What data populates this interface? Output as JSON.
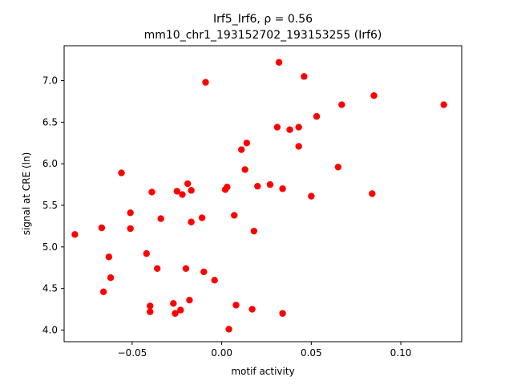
{
  "chart_data": {
    "type": "scatter",
    "title_line1": "Irf5_Irf6, ρ = 0.56",
    "title_line2": "mm10_chr1_193152702_193153255 (Irf6)",
    "xlabel": "motif activity",
    "ylabel": "signal at CRE (ln)",
    "xlim": [
      -0.088,
      0.134
    ],
    "ylim": [
      3.86,
      7.42
    ],
    "xticks": [
      -0.05,
      0.0,
      0.05,
      0.1
    ],
    "xtick_labels": [
      "−0.05",
      "0.00",
      "0.05",
      "0.10"
    ],
    "yticks": [
      4.0,
      4.5,
      5.0,
      5.5,
      6.0,
      6.5,
      7.0
    ],
    "ytick_labels": [
      "4.0",
      "4.5",
      "5.0",
      "5.5",
      "6.0",
      "6.5",
      "7.0"
    ],
    "grid": false,
    "marker_color": "#ff0000",
    "points": [
      {
        "x": -0.082,
        "y": 5.15
      },
      {
        "x": -0.067,
        "y": 5.23
      },
      {
        "x": -0.066,
        "y": 4.46
      },
      {
        "x": -0.063,
        "y": 4.88
      },
      {
        "x": -0.062,
        "y": 4.63
      },
      {
        "x": -0.056,
        "y": 5.89
      },
      {
        "x": -0.051,
        "y": 5.41
      },
      {
        "x": -0.051,
        "y": 5.22
      },
      {
        "x": -0.042,
        "y": 4.92
      },
      {
        "x": -0.04,
        "y": 4.29
      },
      {
        "x": -0.04,
        "y": 4.22
      },
      {
        "x": -0.039,
        "y": 5.66
      },
      {
        "x": -0.036,
        "y": 4.74
      },
      {
        "x": -0.034,
        "y": 5.34
      },
      {
        "x": -0.027,
        "y": 4.32
      },
      {
        "x": -0.026,
        "y": 4.2
      },
      {
        "x": -0.025,
        "y": 5.67
      },
      {
        "x": -0.023,
        "y": 4.24
      },
      {
        "x": -0.022,
        "y": 5.63
      },
      {
        "x": -0.02,
        "y": 4.74
      },
      {
        "x": -0.019,
        "y": 5.76
      },
      {
        "x": -0.018,
        "y": 4.36
      },
      {
        "x": -0.017,
        "y": 5.68
      },
      {
        "x": -0.017,
        "y": 5.3
      },
      {
        "x": -0.011,
        "y": 5.35
      },
      {
        "x": -0.01,
        "y": 4.7
      },
      {
        "x": -0.009,
        "y": 6.98
      },
      {
        "x": -0.004,
        "y": 4.6
      },
      {
        "x": 0.002,
        "y": 5.69
      },
      {
        "x": 0.003,
        "y": 5.72
      },
      {
        "x": 0.004,
        "y": 4.01
      },
      {
        "x": 0.007,
        "y": 5.38
      },
      {
        "x": 0.008,
        "y": 4.3
      },
      {
        "x": 0.011,
        "y": 6.17
      },
      {
        "x": 0.013,
        "y": 5.93
      },
      {
        "x": 0.014,
        "y": 6.25
      },
      {
        "x": 0.017,
        "y": 4.25
      },
      {
        "x": 0.018,
        "y": 5.19
      },
      {
        "x": 0.02,
        "y": 5.73
      },
      {
        "x": 0.027,
        "y": 5.75
      },
      {
        "x": 0.031,
        "y": 6.44
      },
      {
        "x": 0.032,
        "y": 7.22
      },
      {
        "x": 0.034,
        "y": 5.7
      },
      {
        "x": 0.034,
        "y": 4.2
      },
      {
        "x": 0.038,
        "y": 6.41
      },
      {
        "x": 0.043,
        "y": 6.21
      },
      {
        "x": 0.043,
        "y": 6.44
      },
      {
        "x": 0.046,
        "y": 7.05
      },
      {
        "x": 0.05,
        "y": 5.61
      },
      {
        "x": 0.053,
        "y": 6.57
      },
      {
        "x": 0.065,
        "y": 5.96
      },
      {
        "x": 0.067,
        "y": 6.71
      },
      {
        "x": 0.084,
        "y": 5.64
      },
      {
        "x": 0.085,
        "y": 6.82
      },
      {
        "x": 0.124,
        "y": 6.71
      }
    ]
  }
}
